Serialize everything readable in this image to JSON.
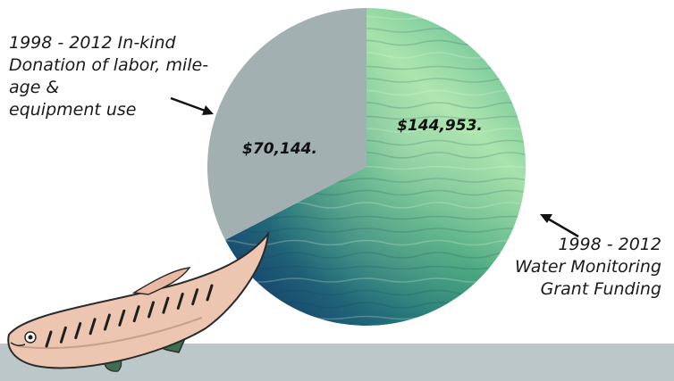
{
  "chart_data": {
    "type": "pie",
    "slices": [
      {
        "label": "1998 - 2012\nWater Monitoring\nGrant Funding",
        "value": 144953,
        "value_label": "$144,953.",
        "fill": "water-texture"
      },
      {
        "label": "1998 - 2012 In-kind\nDonation of labor, mile-\nage &\nequipment use",
        "value": 70144,
        "value_label": "$70,144.",
        "fill": "#a2b0b1"
      }
    ]
  },
  "colors": {
    "inkind_slice": "#a2b0b1",
    "water_light": "#9fdfa6",
    "water_mid": "#3ea07a",
    "water_deep": "#17456f",
    "bottom_band": "#bcc7ca",
    "fish_body": "#ecc6b1",
    "fish_stripes": "#1f1f1f"
  },
  "icons": {
    "left_arrow": "arrow-right-down-icon",
    "right_arrow": "arrow-up-left-icon",
    "fish": "fish-illustration"
  }
}
